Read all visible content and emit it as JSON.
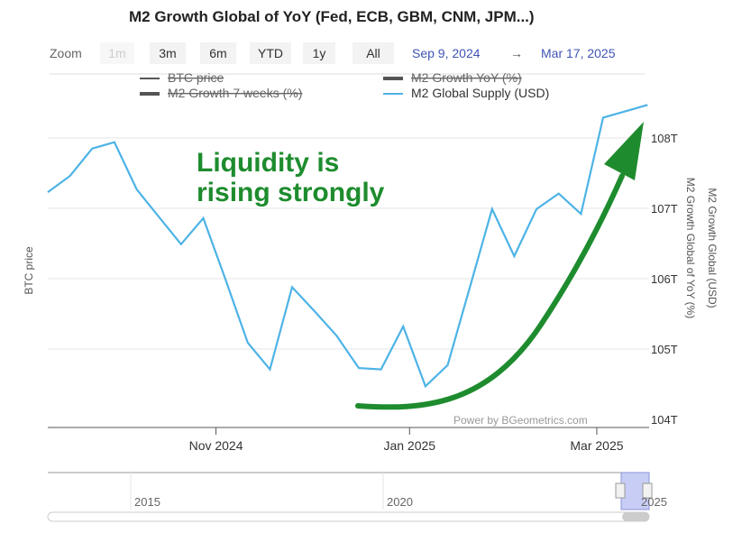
{
  "title": "M2 Growth Global of YoY (Fed, ECB, GBM, CNM, JPM...)",
  "zoom": {
    "label": "Zoom",
    "buttons": [
      "1m",
      "3m",
      "6m",
      "YTD",
      "1y",
      "All"
    ],
    "disabled": "1m",
    "from": "Sep 9, 2024",
    "arrow": "→",
    "to": "Mar 17, 2025"
  },
  "legend": [
    {
      "name": "BTC price",
      "hidden": true
    },
    {
      "name": "M2 Growth YoY (%)",
      "hidden": true
    },
    {
      "name": "M2 Growth 7 weeks (%)",
      "hidden": true
    },
    {
      "name": "M2 Global Supply (USD)",
      "hidden": false,
      "color": "#4db3e6"
    }
  ],
  "annotation": {
    "line1": "Liquidity is",
    "line2": "rising strongly",
    "color": "#1e8c2e"
  },
  "credit": "Power by BGeometrics.com",
  "navigator": {
    "ticks": [
      "2015",
      "2020",
      "2025"
    ]
  },
  "chart_data": {
    "type": "line",
    "xlabel": "",
    "ylabel_left": "BTC price",
    "ylabel_right1": "M2 Growth Global of YoY (%)",
    "ylabel_right2": "M2 Growth Global (USD)",
    "x_ticks": [
      "Nov 2024",
      "Jan 2025",
      "Mar 2025"
    ],
    "y_ticks": [
      "104T",
      "105T",
      "106T",
      "107T",
      "108T"
    ],
    "ylim": [
      104,
      108.5
    ],
    "series": [
      {
        "name": "M2 Global Supply (USD)",
        "color": "#4db3e6",
        "x": [
          "2024-09-09",
          "2024-09-16",
          "2024-09-23",
          "2024-09-30",
          "2024-10-07",
          "2024-10-14",
          "2024-10-21",
          "2024-10-28",
          "2024-11-04",
          "2024-11-11",
          "2024-11-18",
          "2024-11-25",
          "2024-12-02",
          "2024-12-09",
          "2024-12-16",
          "2024-12-23",
          "2024-12-30",
          "2025-01-06",
          "2025-01-13",
          "2025-01-20",
          "2025-01-27",
          "2025-02-03",
          "2025-02-10",
          "2025-02-17",
          "2025-02-24",
          "2025-03-03",
          "2025-03-10",
          "2025-03-17"
        ],
        "values": [
          107.23,
          107.46,
          107.85,
          107.94,
          107.27,
          106.88,
          106.49,
          106.86,
          105.99,
          105.09,
          104.71,
          105.88,
          105.54,
          105.19,
          104.73,
          104.71,
          105.32,
          104.47,
          104.77,
          105.88,
          106.99,
          106.32,
          106.99,
          107.21,
          106.92,
          108.29,
          108.38,
          108.47
        ]
      }
    ]
  }
}
